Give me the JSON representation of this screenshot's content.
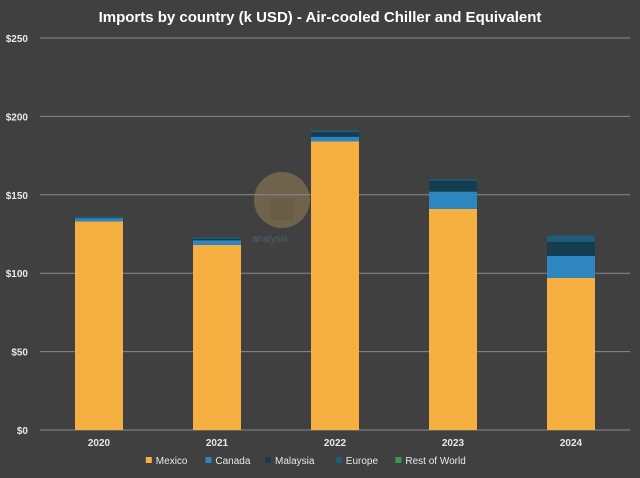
{
  "chart_data": {
    "type": "bar",
    "stacked": true,
    "title": "Imports by country (k USD) - Air-cooled Chiller and Equivalent",
    "xlabel": "",
    "ylabel": "",
    "categories": [
      "2020",
      "2021",
      "2022",
      "2023",
      "2024"
    ],
    "ylim": [
      0,
      250
    ],
    "yticks": [
      0,
      50,
      100,
      150,
      200,
      250
    ],
    "ytick_labels": [
      "$0",
      "$50",
      "$100",
      "$150",
      "$200",
      "$250"
    ],
    "grid": true,
    "legend": "bottom",
    "watermark_text": "analysis",
    "series": [
      {
        "name": "Mexico",
        "color": "#f5b041",
        "values": [
          133,
          118,
          184,
          141,
          97
        ]
      },
      {
        "name": "Canada",
        "color": "#2e86c1",
        "values": [
          2,
          3,
          3,
          11,
          14
        ]
      },
      {
        "name": "Malaysia",
        "color": "#143d4f",
        "values": [
          0,
          1,
          3,
          7,
          9
        ]
      },
      {
        "name": "Europe",
        "color": "#1f5c7a",
        "values": [
          1,
          1,
          1,
          1,
          4
        ]
      },
      {
        "name": "Rest of World",
        "color": "#3c9a4a",
        "values": [
          0,
          0,
          0,
          0,
          0
        ]
      }
    ]
  }
}
